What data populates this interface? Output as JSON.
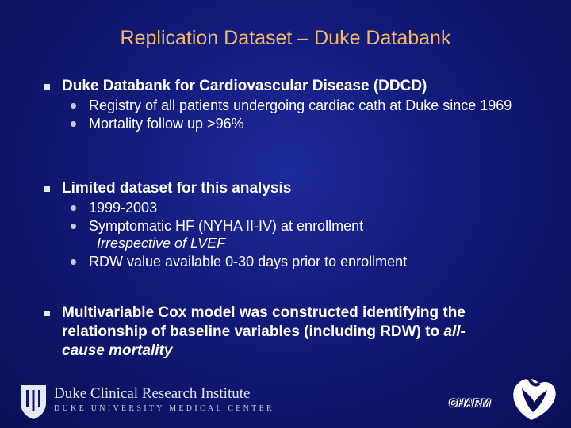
{
  "title": "Replication Dataset – Duke Databank",
  "bullets": [
    {
      "text": "Duke Databank for Cardiovascular Disease (DDCD)",
      "sub": [
        {
          "text": "Registry of all patients undergoing cardiac cath at Duke since 1969"
        },
        {
          "text": "Mortality follow up >96%"
        }
      ]
    },
    {
      "text": "Limited dataset for this analysis",
      "sub": [
        {
          "text": "1999-2003"
        },
        {
          "text": "Symptomatic HF (NYHA II-IV) at enrollment",
          "note": "Irrespective of LVEF"
        },
        {
          "text": "RDW value available 0-30 days prior to enrollment"
        }
      ]
    },
    {
      "text_prefix": "Multivariable Cox model was constructed identifying the relationship of baseline variables (including RDW) to ",
      "text_italic": "all-cause mortality"
    }
  ],
  "footer": {
    "institute_name": "Duke Clinical Research Institute",
    "institute_sub": "DUKE UNIVERSITY MEDICAL CENTER",
    "charm_logo": "CHARM",
    "colors": {
      "title": "#f4b860",
      "background": "#121a78"
    },
    "icons": [
      "duke-shield-icon",
      "heart-logo-icon"
    ]
  }
}
